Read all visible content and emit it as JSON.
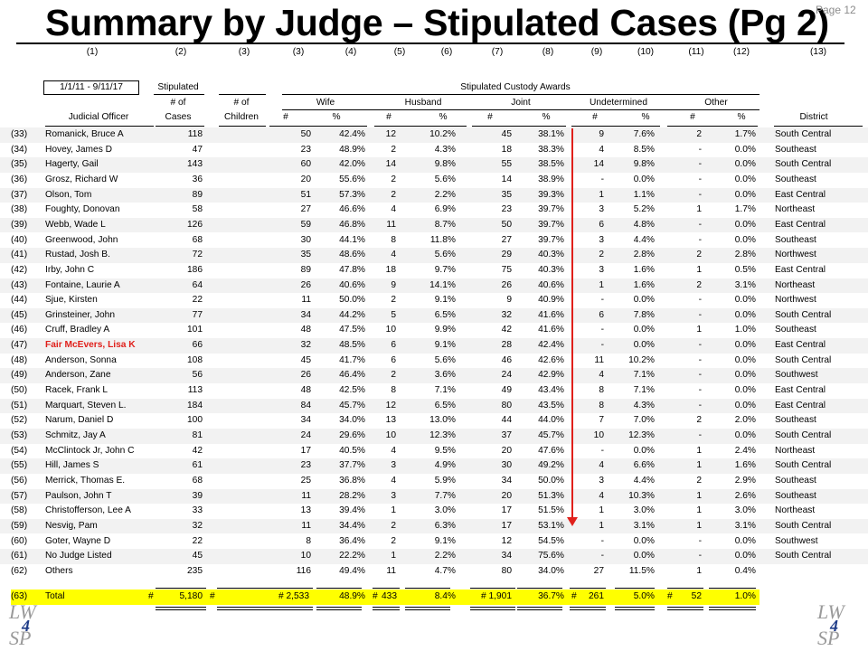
{
  "title": "Summary by Judge – Stipulated Cases (Pg 2)",
  "page_number": "Page 12",
  "column_numbers": [
    "(1)",
    "(2)",
    "(3)",
    "(3)",
    "(4)",
    "(5)",
    "(6)",
    "(7)",
    "(8)",
    "(9)",
    "(10)",
    "(11)",
    "(12)",
    "(13)"
  ],
  "header": {
    "date_range": "1/1/11 - 9/11/17",
    "stipulated": "Stipulated",
    "awards_title": "Stipulated Custody Awards",
    "num_of_1": "# of",
    "cases": "Cases",
    "num_of_2": "# of",
    "children": "Children",
    "judicial_officer": "Judicial Officer",
    "wife": "Wife",
    "husband": "Husband",
    "joint": "Joint",
    "undetermined": "Undetermined",
    "other": "Other",
    "num": "#",
    "pct": "%",
    "district": "District"
  },
  "rows": [
    {
      "idx": "(33)",
      "name": "Romanick, Bruce A",
      "cases": "118",
      "children": "",
      "wife_n": "50",
      "wife_p": "42.4%",
      "hus_n": "12",
      "hus_p": "10.2%",
      "joint_n": "45",
      "joint_p": "38.1%",
      "und_n": "9",
      "und_p": "7.6%",
      "oth_n": "2",
      "oth_p": "1.7%",
      "district": "South Central"
    },
    {
      "idx": "(34)",
      "name": "Hovey, James D",
      "cases": "47",
      "children": "",
      "wife_n": "23",
      "wife_p": "48.9%",
      "hus_n": "2",
      "hus_p": "4.3%",
      "joint_n": "18",
      "joint_p": "38.3%",
      "und_n": "4",
      "und_p": "8.5%",
      "oth_n": "-",
      "oth_p": "0.0%",
      "district": "Southeast"
    },
    {
      "idx": "(35)",
      "name": "Hagerty, Gail",
      "cases": "143",
      "children": "",
      "wife_n": "60",
      "wife_p": "42.0%",
      "hus_n": "14",
      "hus_p": "9.8%",
      "joint_n": "55",
      "joint_p": "38.5%",
      "und_n": "14",
      "und_p": "9.8%",
      "oth_n": "-",
      "oth_p": "0.0%",
      "district": "South Central"
    },
    {
      "idx": "(36)",
      "name": "Grosz, Richard W",
      "cases": "36",
      "children": "",
      "wife_n": "20",
      "wife_p": "55.6%",
      "hus_n": "2",
      "hus_p": "5.6%",
      "joint_n": "14",
      "joint_p": "38.9%",
      "und_n": "-",
      "und_p": "0.0%",
      "oth_n": "-",
      "oth_p": "0.0%",
      "district": "Southeast"
    },
    {
      "idx": "(37)",
      "name": "Olson, Tom",
      "cases": "89",
      "children": "",
      "wife_n": "51",
      "wife_p": "57.3%",
      "hus_n": "2",
      "hus_p": "2.2%",
      "joint_n": "35",
      "joint_p": "39.3%",
      "und_n": "1",
      "und_p": "1.1%",
      "oth_n": "-",
      "oth_p": "0.0%",
      "district": "East Central"
    },
    {
      "idx": "(38)",
      "name": "Foughty, Donovan",
      "cases": "58",
      "children": "",
      "wife_n": "27",
      "wife_p": "46.6%",
      "hus_n": "4",
      "hus_p": "6.9%",
      "joint_n": "23",
      "joint_p": "39.7%",
      "und_n": "3",
      "und_p": "5.2%",
      "oth_n": "1",
      "oth_p": "1.7%",
      "district": "Northeast"
    },
    {
      "idx": "(39)",
      "name": "Webb, Wade L",
      "cases": "126",
      "children": "",
      "wife_n": "59",
      "wife_p": "46.8%",
      "hus_n": "11",
      "hus_p": "8.7%",
      "joint_n": "50",
      "joint_p": "39.7%",
      "und_n": "6",
      "und_p": "4.8%",
      "oth_n": "-",
      "oth_p": "0.0%",
      "district": "East Central"
    },
    {
      "idx": "(40)",
      "name": "Greenwood, John",
      "cases": "68",
      "children": "",
      "wife_n": "30",
      "wife_p": "44.1%",
      "hus_n": "8",
      "hus_p": "11.8%",
      "joint_n": "27",
      "joint_p": "39.7%",
      "und_n": "3",
      "und_p": "4.4%",
      "oth_n": "-",
      "oth_p": "0.0%",
      "district": "Southeast"
    },
    {
      "idx": "(41)",
      "name": "Rustad, Josh B.",
      "cases": "72",
      "children": "",
      "wife_n": "35",
      "wife_p": "48.6%",
      "hus_n": "4",
      "hus_p": "5.6%",
      "joint_n": "29",
      "joint_p": "40.3%",
      "und_n": "2",
      "und_p": "2.8%",
      "oth_n": "2",
      "oth_p": "2.8%",
      "district": "Northwest"
    },
    {
      "idx": "(42)",
      "name": "Irby, John C",
      "cases": "186",
      "children": "",
      "wife_n": "89",
      "wife_p": "47.8%",
      "hus_n": "18",
      "hus_p": "9.7%",
      "joint_n": "75",
      "joint_p": "40.3%",
      "und_n": "3",
      "und_p": "1.6%",
      "oth_n": "1",
      "oth_p": "0.5%",
      "district": "East Central"
    },
    {
      "idx": "(43)",
      "name": "Fontaine, Laurie A",
      "cases": "64",
      "children": "",
      "wife_n": "26",
      "wife_p": "40.6%",
      "hus_n": "9",
      "hus_p": "14.1%",
      "joint_n": "26",
      "joint_p": "40.6%",
      "und_n": "1",
      "und_p": "1.6%",
      "oth_n": "2",
      "oth_p": "3.1%",
      "district": "Northeast"
    },
    {
      "idx": "(44)",
      "name": "Sjue, Kirsten",
      "cases": "22",
      "children": "",
      "wife_n": "11",
      "wife_p": "50.0%",
      "hus_n": "2",
      "hus_p": "9.1%",
      "joint_n": "9",
      "joint_p": "40.9%",
      "und_n": "-",
      "und_p": "0.0%",
      "oth_n": "-",
      "oth_p": "0.0%",
      "district": "Northwest"
    },
    {
      "idx": "(45)",
      "name": "Grinsteiner, John",
      "cases": "77",
      "children": "",
      "wife_n": "34",
      "wife_p": "44.2%",
      "hus_n": "5",
      "hus_p": "6.5%",
      "joint_n": "32",
      "joint_p": "41.6%",
      "und_n": "6",
      "und_p": "7.8%",
      "oth_n": "-",
      "oth_p": "0.0%",
      "district": "South Central"
    },
    {
      "idx": "(46)",
      "name": "Cruff, Bradley A",
      "cases": "101",
      "children": "",
      "wife_n": "48",
      "wife_p": "47.5%",
      "hus_n": "10",
      "hus_p": "9.9%",
      "joint_n": "42",
      "joint_p": "41.6%",
      "und_n": "-",
      "und_p": "0.0%",
      "oth_n": "1",
      "oth_p": "1.0%",
      "district": "Southeast"
    },
    {
      "idx": "(47)",
      "name": "Fair McEvers, Lisa K",
      "cases": "66",
      "children": "",
      "wife_n": "32",
      "wife_p": "48.5%",
      "hus_n": "6",
      "hus_p": "9.1%",
      "joint_n": "28",
      "joint_p": "42.4%",
      "und_n": "-",
      "und_p": "0.0%",
      "oth_n": "-",
      "oth_p": "0.0%",
      "district": "East Central",
      "highlight": true
    },
    {
      "idx": "(48)",
      "name": "Anderson, Sonna",
      "cases": "108",
      "children": "",
      "wife_n": "45",
      "wife_p": "41.7%",
      "hus_n": "6",
      "hus_p": "5.6%",
      "joint_n": "46",
      "joint_p": "42.6%",
      "und_n": "11",
      "und_p": "10.2%",
      "oth_n": "-",
      "oth_p": "0.0%",
      "district": "South Central"
    },
    {
      "idx": "(49)",
      "name": "Anderson, Zane",
      "cases": "56",
      "children": "",
      "wife_n": "26",
      "wife_p": "46.4%",
      "hus_n": "2",
      "hus_p": "3.6%",
      "joint_n": "24",
      "joint_p": "42.9%",
      "und_n": "4",
      "und_p": "7.1%",
      "oth_n": "-",
      "oth_p": "0.0%",
      "district": "Southwest"
    },
    {
      "idx": "(50)",
      "name": "Racek, Frank L",
      "cases": "113",
      "children": "",
      "wife_n": "48",
      "wife_p": "42.5%",
      "hus_n": "8",
      "hus_p": "7.1%",
      "joint_n": "49",
      "joint_p": "43.4%",
      "und_n": "8",
      "und_p": "7.1%",
      "oth_n": "-",
      "oth_p": "0.0%",
      "district": "East Central"
    },
    {
      "idx": "(51)",
      "name": "Marquart, Steven L.",
      "cases": "184",
      "children": "",
      "wife_n": "84",
      "wife_p": "45.7%",
      "hus_n": "12",
      "hus_p": "6.5%",
      "joint_n": "80",
      "joint_p": "43.5%",
      "und_n": "8",
      "und_p": "4.3%",
      "oth_n": "-",
      "oth_p": "0.0%",
      "district": "East Central"
    },
    {
      "idx": "(52)",
      "name": "Narum, Daniel D",
      "cases": "100",
      "children": "",
      "wife_n": "34",
      "wife_p": "34.0%",
      "hus_n": "13",
      "hus_p": "13.0%",
      "joint_n": "44",
      "joint_p": "44.0%",
      "und_n": "7",
      "und_p": "7.0%",
      "oth_n": "2",
      "oth_p": "2.0%",
      "district": "Southeast"
    },
    {
      "idx": "(53)",
      "name": "Schmitz, Jay A",
      "cases": "81",
      "children": "",
      "wife_n": "24",
      "wife_p": "29.6%",
      "hus_n": "10",
      "hus_p": "12.3%",
      "joint_n": "37",
      "joint_p": "45.7%",
      "und_n": "10",
      "und_p": "12.3%",
      "oth_n": "-",
      "oth_p": "0.0%",
      "district": "South Central"
    },
    {
      "idx": "(54)",
      "name": "McClintock Jr, John C",
      "cases": "42",
      "children": "",
      "wife_n": "17",
      "wife_p": "40.5%",
      "hus_n": "4",
      "hus_p": "9.5%",
      "joint_n": "20",
      "joint_p": "47.6%",
      "und_n": "-",
      "und_p": "0.0%",
      "oth_n": "1",
      "oth_p": "2.4%",
      "district": "Northeast"
    },
    {
      "idx": "(55)",
      "name": "Hill, James S",
      "cases": "61",
      "children": "",
      "wife_n": "23",
      "wife_p": "37.7%",
      "hus_n": "3",
      "hus_p": "4.9%",
      "joint_n": "30",
      "joint_p": "49.2%",
      "und_n": "4",
      "und_p": "6.6%",
      "oth_n": "1",
      "oth_p": "1.6%",
      "district": "South Central"
    },
    {
      "idx": "(56)",
      "name": "Merrick, Thomas E.",
      "cases": "68",
      "children": "",
      "wife_n": "25",
      "wife_p": "36.8%",
      "hus_n": "4",
      "hus_p": "5.9%",
      "joint_n": "34",
      "joint_p": "50.0%",
      "und_n": "3",
      "und_p": "4.4%",
      "oth_n": "2",
      "oth_p": "2.9%",
      "district": "Southeast"
    },
    {
      "idx": "(57)",
      "name": "Paulson, John T",
      "cases": "39",
      "children": "",
      "wife_n": "11",
      "wife_p": "28.2%",
      "hus_n": "3",
      "hus_p": "7.7%",
      "joint_n": "20",
      "joint_p": "51.3%",
      "und_n": "4",
      "und_p": "10.3%",
      "oth_n": "1",
      "oth_p": "2.6%",
      "district": "Southeast"
    },
    {
      "idx": "(58)",
      "name": "Christofferson, Lee A",
      "cases": "33",
      "children": "",
      "wife_n": "13",
      "wife_p": "39.4%",
      "hus_n": "1",
      "hus_p": "3.0%",
      "joint_n": "17",
      "joint_p": "51.5%",
      "und_n": "1",
      "und_p": "3.0%",
      "oth_n": "1",
      "oth_p": "3.0%",
      "district": "Northeast"
    },
    {
      "idx": "(59)",
      "name": "Nesvig, Pam",
      "cases": "32",
      "children": "",
      "wife_n": "11",
      "wife_p": "34.4%",
      "hus_n": "2",
      "hus_p": "6.3%",
      "joint_n": "17",
      "joint_p": "53.1%",
      "und_n": "1",
      "und_p": "3.1%",
      "oth_n": "1",
      "oth_p": "3.1%",
      "district": "South Central"
    },
    {
      "idx": "(60)",
      "name": "Goter, Wayne D",
      "cases": "22",
      "children": "",
      "wife_n": "8",
      "wife_p": "36.4%",
      "hus_n": "2",
      "hus_p": "9.1%",
      "joint_n": "12",
      "joint_p": "54.5%",
      "und_n": "-",
      "und_p": "0.0%",
      "oth_n": "-",
      "oth_p": "0.0%",
      "district": "Southwest"
    },
    {
      "idx": "(61)",
      "name": "No Judge Listed",
      "cases": "45",
      "children": "",
      "wife_n": "10",
      "wife_p": "22.2%",
      "hus_n": "1",
      "hus_p": "2.2%",
      "joint_n": "34",
      "joint_p": "75.6%",
      "und_n": "-",
      "und_p": "0.0%",
      "oth_n": "-",
      "oth_p": "0.0%",
      "district": "South Central"
    },
    {
      "idx": "(62)",
      "name": "Others",
      "cases": "235",
      "children": "",
      "wife_n": "116",
      "wife_p": "49.4%",
      "hus_n": "11",
      "hus_p": "4.7%",
      "joint_n": "80",
      "joint_p": "34.0%",
      "und_n": "27",
      "und_p": "11.5%",
      "oth_n": "1",
      "oth_p": "0.4%",
      "district": ""
    }
  ],
  "total": {
    "idx": "(63)",
    "name": "Total",
    "cases_sym": "#",
    "cases": "5,180",
    "children_sym": "#",
    "wife_n": "# 2,533",
    "wife_p": "48.9%",
    "hus_sym": "#",
    "hus_n": "433",
    "hus_p": "8.4%",
    "joint_n": "# 1,901",
    "joint_p": "36.7%",
    "und_sym": "#",
    "und_n": "261",
    "und_p": "5.0%",
    "oth_sym": "#",
    "oth_n": "52",
    "oth_p": "1.0%"
  },
  "logo": {
    "top_text": "LW",
    "number": "4",
    "bottom_text": "SP"
  },
  "colors": {
    "highlight": "#ffff00",
    "red": "#e0201b",
    "shade": "#f2f2f2"
  }
}
